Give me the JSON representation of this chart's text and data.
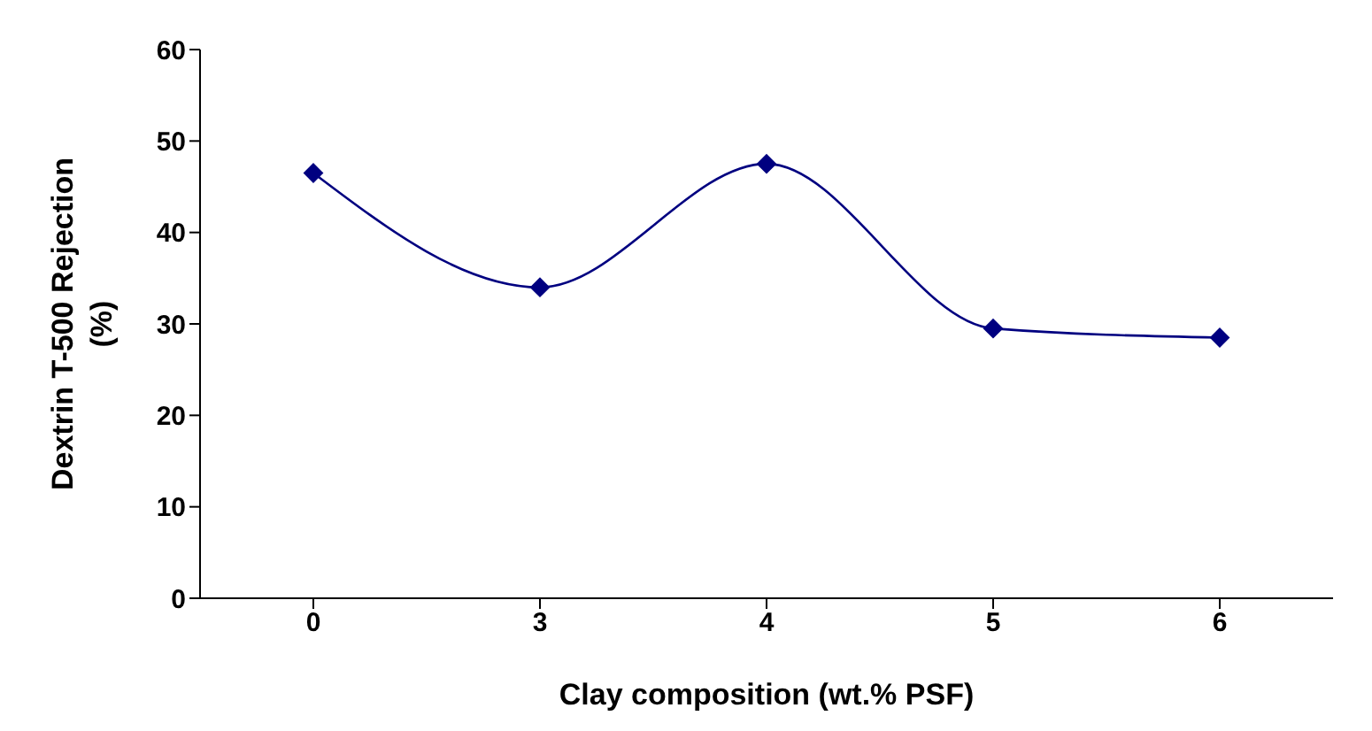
{
  "chart_data": {
    "type": "line",
    "xlabel": "Clay composition (wt.% PSF)",
    "ylabel": "Dextrin T-500 Rejection (%)",
    "categories": [
      "0",
      "3",
      "4",
      "5",
      "6"
    ],
    "series": [
      {
        "color": "#000080",
        "values": [
          46.5,
          34,
          47.5,
          29.5,
          28.5
        ]
      }
    ],
    "ylim": [
      0,
      60
    ],
    "yticks": [
      0,
      10,
      20,
      30,
      40,
      50,
      60
    ],
    "marker": "diamond",
    "grid": false,
    "legend": false
  }
}
